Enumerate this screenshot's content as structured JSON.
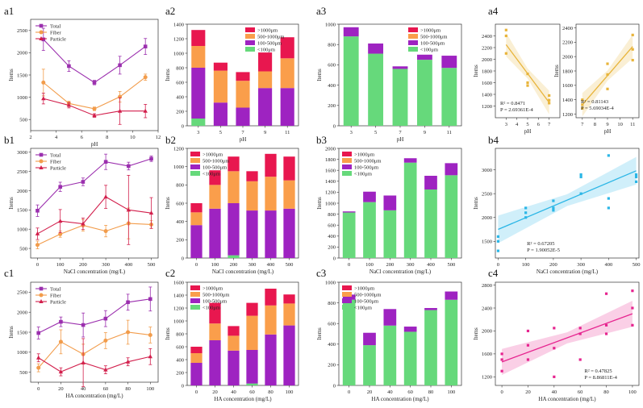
{
  "chart_data": [
    {
      "id": "a1",
      "panel_label": "a1",
      "type": "line",
      "xlabel": "pH",
      "ylabel": "Items",
      "xlim": [
        2,
        12
      ],
      "ylim": [
        250,
        2750
      ],
      "xticks": [
        2,
        4,
        6,
        8,
        10,
        12
      ],
      "yticks": [
        500,
        1000,
        1500,
        2000,
        2500
      ],
      "x": [
        3,
        5,
        7,
        9,
        11
      ],
      "legend_position": "top-left",
      "series": [
        {
          "name": "Total",
          "color": "#9b2fae",
          "marker": "square",
          "values": [
            2300,
            1700,
            1330,
            1720,
            2140
          ],
          "err": [
            250,
            120,
            50,
            200,
            180
          ]
        },
        {
          "name": "Fiber",
          "color": "#f29c4b",
          "marker": "circle",
          "values": [
            1330,
            860,
            740,
            1010,
            1450
          ],
          "err": [
            300,
            50,
            40,
            120,
            70
          ]
        },
        {
          "name": "Particle",
          "color": "#d21f4c",
          "marker": "triangle",
          "values": [
            970,
            820,
            590,
            690,
            690
          ],
          "err": [
            120,
            60,
            40,
            300,
            150
          ]
        }
      ]
    },
    {
      "id": "a2",
      "panel_label": "a2",
      "type": "stacked-bar",
      "xlabel": "pH",
      "ylabel": "Items",
      "ylim": [
        0,
        1400
      ],
      "yticks": [
        0,
        200,
        400,
        600,
        800,
        1000,
        1200,
        1400
      ],
      "categories": [
        "3",
        "5",
        "7",
        "9",
        "11"
      ],
      "legend_position": "top-right",
      "series": [
        {
          "name": "<100μm",
          "color": "#66d97b",
          "values": [
            100,
            0,
            0,
            0,
            0
          ]
        },
        {
          "name": "100-500μm",
          "color": "#9e23c1",
          "values": [
            700,
            320,
            250,
            520,
            520
          ]
        },
        {
          "name": "500-1000μm",
          "color": "#fa9e4b",
          "values": [
            300,
            440,
            370,
            230,
            410
          ]
        },
        {
          "name": ">1000μm",
          "color": "#e8174f",
          "values": [
            220,
            110,
            120,
            260,
            290
          ]
        }
      ]
    },
    {
      "id": "a3",
      "panel_label": "a3",
      "type": "stacked-bar",
      "xlabel": "pH",
      "ylabel": "Items",
      "ylim": [
        0,
        1000
      ],
      "yticks": [
        0,
        200,
        400,
        600,
        800,
        1000
      ],
      "categories": [
        "3",
        "5",
        "7",
        "9",
        "11"
      ],
      "legend_position": "top-right",
      "series": [
        {
          "name": "<100μm",
          "color": "#66d97b",
          "values": [
            880,
            710,
            560,
            650,
            570
          ]
        },
        {
          "name": "100-500μm",
          "color": "#9e23c1",
          "values": [
            90,
            100,
            25,
            50,
            120
          ]
        },
        {
          "name": "500-1000μm",
          "color": "#fa9e4b",
          "values": [
            0,
            0,
            0,
            0,
            0
          ]
        },
        {
          "name": ">1000μm",
          "color": "#e8174f",
          "values": [
            0,
            0,
            0,
            0,
            0
          ]
        }
      ]
    },
    {
      "id": "a4l",
      "panel_label": "a4",
      "type": "scatter",
      "xlabel": "pH",
      "ylabel": "Items",
      "xlim": [
        2,
        8
      ],
      "ylim": [
        1000,
        2600
      ],
      "xticks": [
        3,
        4,
        5,
        6,
        7
      ],
      "yticks": [
        1200,
        1400,
        1600,
        1800,
        2000,
        2200,
        2400
      ],
      "color": "#e8b43a",
      "points": [
        [
          3,
          2500
        ],
        [
          3,
          2400
        ],
        [
          3,
          2100
        ],
        [
          5,
          1750
        ],
        [
          5,
          1600
        ],
        [
          5,
          1550
        ],
        [
          7,
          1380
        ],
        [
          7,
          1300
        ],
        [
          7,
          1250
        ]
      ],
      "fit": [
        [
          3,
          2250
        ],
        [
          7,
          1260
        ]
      ],
      "annotation": [
        "R² = 0.8471",
        "P = 2.69361E-4"
      ]
    },
    {
      "id": "a4r",
      "type": "scatter",
      "xlabel": "pH",
      "ylabel": "Items",
      "xlim": [
        6.5,
        11.5
      ],
      "ylim": [
        1150,
        2450
      ],
      "xticks": [
        7,
        8,
        9,
        10,
        11
      ],
      "yticks": [
        1200,
        1400,
        1600,
        1800,
        2000,
        2200,
        2400
      ],
      "color": "#e8b43a",
      "points": [
        [
          7,
          1400
        ],
        [
          7,
          1330
        ],
        [
          7,
          1280
        ],
        [
          9,
          1900
        ],
        [
          9,
          1750
        ],
        [
          9,
          1550
        ],
        [
          11,
          2300
        ],
        [
          11,
          2100
        ],
        [
          11,
          1950
        ]
      ],
      "fit": [
        [
          7,
          1330
        ],
        [
          11,
          2140
        ]
      ],
      "annotation": [
        "R² = 0.81143",
        "P = 5.69034E-4"
      ]
    },
    {
      "id": "b1",
      "panel_label": "b1",
      "type": "line",
      "xlabel": "NaCl concentration (mg/L)",
      "ylabel": "Items",
      "xlim": [
        -30,
        530
      ],
      "ylim": [
        250,
        3100
      ],
      "xticks": [
        0,
        100,
        200,
        300,
        400,
        500
      ],
      "yticks": [
        500,
        1000,
        1500,
        2000,
        2500,
        3000
      ],
      "x": [
        0,
        100,
        200,
        300,
        400,
        500
      ],
      "legend_position": "top-left",
      "series": [
        {
          "name": "Total",
          "color": "#9b2fae",
          "marker": "square",
          "values": [
            1480,
            2100,
            2230,
            2750,
            2640,
            2830
          ],
          "err": [
            150,
            120,
            100,
            200,
            100,
            70
          ]
        },
        {
          "name": "Fiber",
          "color": "#f29c4b",
          "marker": "circle",
          "values": [
            590,
            870,
            1100,
            950,
            1150,
            1120
          ],
          "err": [
            100,
            80,
            150,
            150,
            400,
            100
          ]
        },
        {
          "name": "Particle",
          "color": "#d21f4c",
          "marker": "triangle",
          "values": [
            880,
            1210,
            1140,
            1840,
            1500,
            1420
          ],
          "err": [
            150,
            300,
            150,
            300,
            900,
            400
          ]
        }
      ]
    },
    {
      "id": "b2",
      "panel_label": "b2",
      "type": "stacked-bar",
      "xlabel": "NaCl concentration (mg/L)",
      "ylabel": "Items",
      "ylim": [
        0,
        1200
      ],
      "yticks": [
        0,
        200,
        400,
        600,
        800,
        1000,
        1200
      ],
      "categories": [
        "0",
        "100",
        "200",
        "300",
        "400",
        "500"
      ],
      "legend_position": "top-left",
      "series": [
        {
          "name": "<100μm",
          "color": "#66d97b",
          "values": [
            0,
            0,
            30,
            0,
            0,
            0
          ]
        },
        {
          "name": "100-500μm",
          "color": "#9e23c1",
          "values": [
            360,
            540,
            570,
            520,
            520,
            540
          ]
        },
        {
          "name": "500-1000μm",
          "color": "#fa9e4b",
          "values": [
            140,
            260,
            350,
            320,
            370,
            310
          ]
        },
        {
          "name": ">1000μm",
          "color": "#e8174f",
          "values": [
            100,
            160,
            160,
            110,
            250,
            260
          ]
        }
      ]
    },
    {
      "id": "b3",
      "panel_label": "b3",
      "type": "stacked-bar",
      "xlabel": "NaCl concentration (mg/L)",
      "ylabel": "Items",
      "ylim": [
        0,
        2000
      ],
      "yticks": [
        0,
        200,
        400,
        600,
        800,
        1000,
        1200,
        1400,
        1600,
        1800,
        2000
      ],
      "categories": [
        "0",
        "100",
        "200",
        "300",
        "400",
        "500"
      ],
      "legend_position": "top-left",
      "series": [
        {
          "name": "<100μm",
          "color": "#66d97b",
          "values": [
            830,
            1020,
            870,
            1740,
            1250,
            1510
          ]
        },
        {
          "name": "100-500μm",
          "color": "#9e23c1",
          "values": [
            20,
            190,
            270,
            80,
            250,
            220
          ]
        },
        {
          "name": "500-1000μm",
          "color": "#fa9e4b",
          "values": [
            0,
            0,
            0,
            0,
            0,
            0
          ]
        },
        {
          "name": ">1000μm",
          "color": "#e8174f",
          "values": [
            0,
            0,
            0,
            0,
            0,
            0
          ]
        }
      ]
    },
    {
      "id": "b4",
      "panel_label": "b4",
      "type": "scatter",
      "xlabel": "NaCl concentration (mg/L)",
      "ylabel": "Items",
      "xlim": [
        -10,
        510
      ],
      "ylim": [
        1150,
        3450
      ],
      "xticks": [
        0,
        100,
        200,
        300,
        400,
        500
      ],
      "yticks": [
        1500,
        2000,
        2500,
        3000
      ],
      "color": "#2bb6e6",
      "points": [
        [
          0,
          1600
        ],
        [
          0,
          1500
        ],
        [
          0,
          1300
        ],
        [
          100,
          2200
        ],
        [
          100,
          2100
        ],
        [
          100,
          2000
        ],
        [
          200,
          2350
        ],
        [
          200,
          2200
        ],
        [
          200,
          2150
        ],
        [
          300,
          2900
        ],
        [
          300,
          2850
        ],
        [
          300,
          2500
        ],
        [
          400,
          3300
        ],
        [
          400,
          2400
        ],
        [
          400,
          2200
        ],
        [
          500,
          2900
        ],
        [
          500,
          2850
        ],
        [
          500,
          2750
        ]
      ],
      "fit": [
        [
          0,
          1750
        ],
        [
          500,
          2980
        ]
      ],
      "annotation": [
        "R² = 0.67205",
        "P = 1.90052E-5"
      ]
    },
    {
      "id": "c1",
      "panel_label": "c1",
      "type": "line",
      "xlabel": "HA concentration (mg/L)",
      "ylabel": "Items",
      "xlim": [
        -7,
        107
      ],
      "ylim": [
        250,
        2750
      ],
      "xticks": [
        0,
        20,
        40,
        60,
        80,
        100
      ],
      "yticks": [
        500,
        1000,
        1500,
        2000,
        2500
      ],
      "x": [
        0,
        20,
        40,
        60,
        80,
        100
      ],
      "legend_position": "top-left",
      "series": [
        {
          "name": "Total",
          "color": "#9b2fae",
          "marker": "square",
          "values": [
            1480,
            1760,
            1680,
            1840,
            2250,
            2330
          ],
          "err": [
            150,
            120,
            300,
            200,
            200,
            300
          ]
        },
        {
          "name": "Fiber",
          "color": "#f29c4b",
          "marker": "circle",
          "values": [
            610,
            1260,
            950,
            1290,
            1500,
            1430
          ],
          "err": [
            100,
            300,
            250,
            200,
            300,
            200
          ]
        },
        {
          "name": "Particle",
          "color": "#d21f4c",
          "marker": "triangle",
          "values": [
            860,
            510,
            740,
            560,
            760,
            890
          ],
          "err": [
            100,
            100,
            600,
            100,
            100,
            200
          ]
        }
      ]
    },
    {
      "id": "c2",
      "panel_label": "c2",
      "type": "stacked-bar",
      "xlabel": "HA concentration (mg/L)",
      "ylabel": "Items",
      "ylim": [
        0,
        1600
      ],
      "yticks": [
        0,
        200,
        400,
        600,
        800,
        1000,
        1200,
        1400,
        1600
      ],
      "categories": [
        "0",
        "20",
        "40",
        "60",
        "80",
        "100"
      ],
      "legend_position": "top-left",
      "series": [
        {
          "name": "<100μm",
          "color": "#66d97b",
          "values": [
            0,
            0,
            0,
            30,
            0,
            0
          ]
        },
        {
          "name": "100-500μm",
          "color": "#9e23c1",
          "values": [
            350,
            700,
            540,
            520,
            790,
            930
          ]
        },
        {
          "name": "500-1000μm",
          "color": "#fa9e4b",
          "values": [
            150,
            260,
            230,
            530,
            450,
            340
          ]
        },
        {
          "name": ">1000μm",
          "color": "#e8174f",
          "values": [
            100,
            320,
            150,
            200,
            260,
            140
          ]
        }
      ]
    },
    {
      "id": "c3",
      "panel_label": "c3",
      "type": "stacked-bar",
      "xlabel": "HA concentration (mg/L)",
      "ylabel": "Items",
      "ylim": [
        0,
        1000
      ],
      "yticks": [
        0,
        200,
        400,
        600,
        800,
        1000
      ],
      "categories": [
        "0",
        "20",
        "40",
        "60",
        "80",
        "100"
      ],
      "legend_position": "top-left",
      "series": [
        {
          "name": "<100μm",
          "color": "#66d97b",
          "values": [
            830,
            390,
            580,
            520,
            730,
            830
          ]
        },
        {
          "name": "100-500μm",
          "color": "#9e23c1",
          "values": [
            50,
            120,
            160,
            50,
            20,
            80
          ]
        },
        {
          "name": "500-1000μm",
          "color": "#fa9e4b",
          "values": [
            0,
            0,
            0,
            0,
            0,
            0
          ]
        },
        {
          "name": ">1000μm",
          "color": "#e8174f",
          "values": [
            0,
            0,
            0,
            0,
            0,
            0
          ]
        }
      ]
    },
    {
      "id": "c4",
      "panel_label": "c4",
      "type": "scatter",
      "xlabel": "HA concentration (mg/L)",
      "ylabel": "Items",
      "xlim": [
        -5,
        105
      ],
      "ylim": [
        1050,
        2850
      ],
      "xticks": [
        0,
        20,
        40,
        60,
        80,
        100
      ],
      "yticks": [
        1200,
        1600,
        2000,
        2400,
        2800
      ],
      "color": "#e6248f",
      "points": [
        [
          0,
          1600
        ],
        [
          0,
          1500
        ],
        [
          0,
          1300
        ],
        [
          20,
          2000
        ],
        [
          20,
          1750
        ],
        [
          20,
          1500
        ],
        [
          40,
          2050
        ],
        [
          40,
          1700
        ],
        [
          40,
          1200
        ],
        [
          60,
          2050
        ],
        [
          60,
          1950
        ],
        [
          60,
          1500
        ],
        [
          80,
          2650
        ],
        [
          80,
          2100
        ],
        [
          80,
          1950
        ],
        [
          100,
          2700
        ],
        [
          100,
          2400
        ],
        [
          100,
          2100
        ]
      ],
      "fit": [
        [
          0,
          1460
        ],
        [
          100,
          2300
        ]
      ],
      "annotation": [
        "R² = 0.47825",
        "P = 8.86811E-4"
      ]
    }
  ]
}
